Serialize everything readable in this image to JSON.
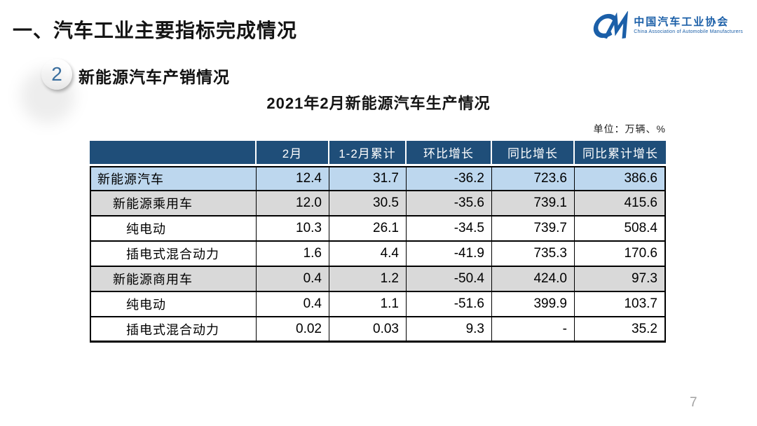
{
  "header": {
    "title": "一、汽车工业主要指标完成情况"
  },
  "logo": {
    "mark": "CM-monogram",
    "org_cn": "中国汽车工业协会",
    "org_en": "China Association of Automobile Manufacturers",
    "color": "#1b5fa8"
  },
  "section": {
    "number": "2",
    "label": "新能源汽车产销情况"
  },
  "table_title": "2021年2月新能源汽车生产情况",
  "unit_note": "单位：万辆、%",
  "table": {
    "columns": [
      "",
      "2月",
      "1-2月累计",
      "环比增长",
      "同比增长",
      "同比累计增长"
    ],
    "rows": [
      {
        "label": "新能源汽车",
        "indent": 0,
        "bg": "blue",
        "values": [
          "12.4",
          "31.7",
          "-36.2",
          "723.6",
          "386.6"
        ]
      },
      {
        "label": "新能源乘用车",
        "indent": 1,
        "bg": "gray",
        "values": [
          "12.0",
          "30.5",
          "-35.6",
          "739.1",
          "415.6"
        ]
      },
      {
        "label": "纯电动",
        "indent": 2,
        "bg": "white",
        "values": [
          "10.3",
          "26.1",
          "-34.5",
          "739.7",
          "508.4"
        ]
      },
      {
        "label": "插电式混合动力",
        "indent": 2,
        "bg": "white",
        "values": [
          "1.6",
          "4.4",
          "-41.9",
          "735.3",
          "170.6"
        ]
      },
      {
        "label": "新能源商用车",
        "indent": 1,
        "bg": "gray",
        "values": [
          "0.4",
          "1.2",
          "-50.4",
          "424.0",
          "97.3"
        ]
      },
      {
        "label": "纯电动",
        "indent": 2,
        "bg": "white",
        "values": [
          "0.4",
          "1.1",
          "-51.6",
          "399.9",
          "103.7"
        ]
      },
      {
        "label": "插电式混合动力",
        "indent": 2,
        "bg": "white",
        "values": [
          "0.02",
          "0.03",
          "9.3",
          "-",
          "35.2"
        ]
      }
    ]
  },
  "chart_data": {
    "type": "table",
    "title": "2021年2月新能源汽车生产情况",
    "unit": "万辆、%",
    "columns": [
      "2月",
      "1-2月累计",
      "环比增长",
      "同比增长",
      "同比累计增长"
    ],
    "rows": [
      {
        "name": "新能源汽车",
        "values": [
          12.4,
          31.7,
          -36.2,
          723.6,
          386.6
        ]
      },
      {
        "name": "新能源乘用车",
        "values": [
          12.0,
          30.5,
          -35.6,
          739.1,
          415.6
        ]
      },
      {
        "name": "纯电动(乘用车)",
        "values": [
          10.3,
          26.1,
          -34.5,
          739.7,
          508.4
        ]
      },
      {
        "name": "插电式混合动力(乘用车)",
        "values": [
          1.6,
          4.4,
          -41.9,
          735.3,
          170.6
        ]
      },
      {
        "name": "新能源商用车",
        "values": [
          0.4,
          1.2,
          -50.4,
          424.0,
          97.3
        ]
      },
      {
        "name": "纯电动(商用车)",
        "values": [
          0.4,
          1.1,
          -51.6,
          399.9,
          103.7
        ]
      },
      {
        "name": "插电式混合动力(商用车)",
        "values": [
          0.02,
          0.03,
          9.3,
          null,
          35.2
        ]
      }
    ]
  },
  "footer": {
    "page_number": "7"
  },
  "colors": {
    "accent_blue": "#1b5fa8",
    "table_header_bg": "#1f4e79",
    "row_highlight_blue": "#bdd7ee",
    "row_highlight_gray": "#d9d9d9"
  }
}
